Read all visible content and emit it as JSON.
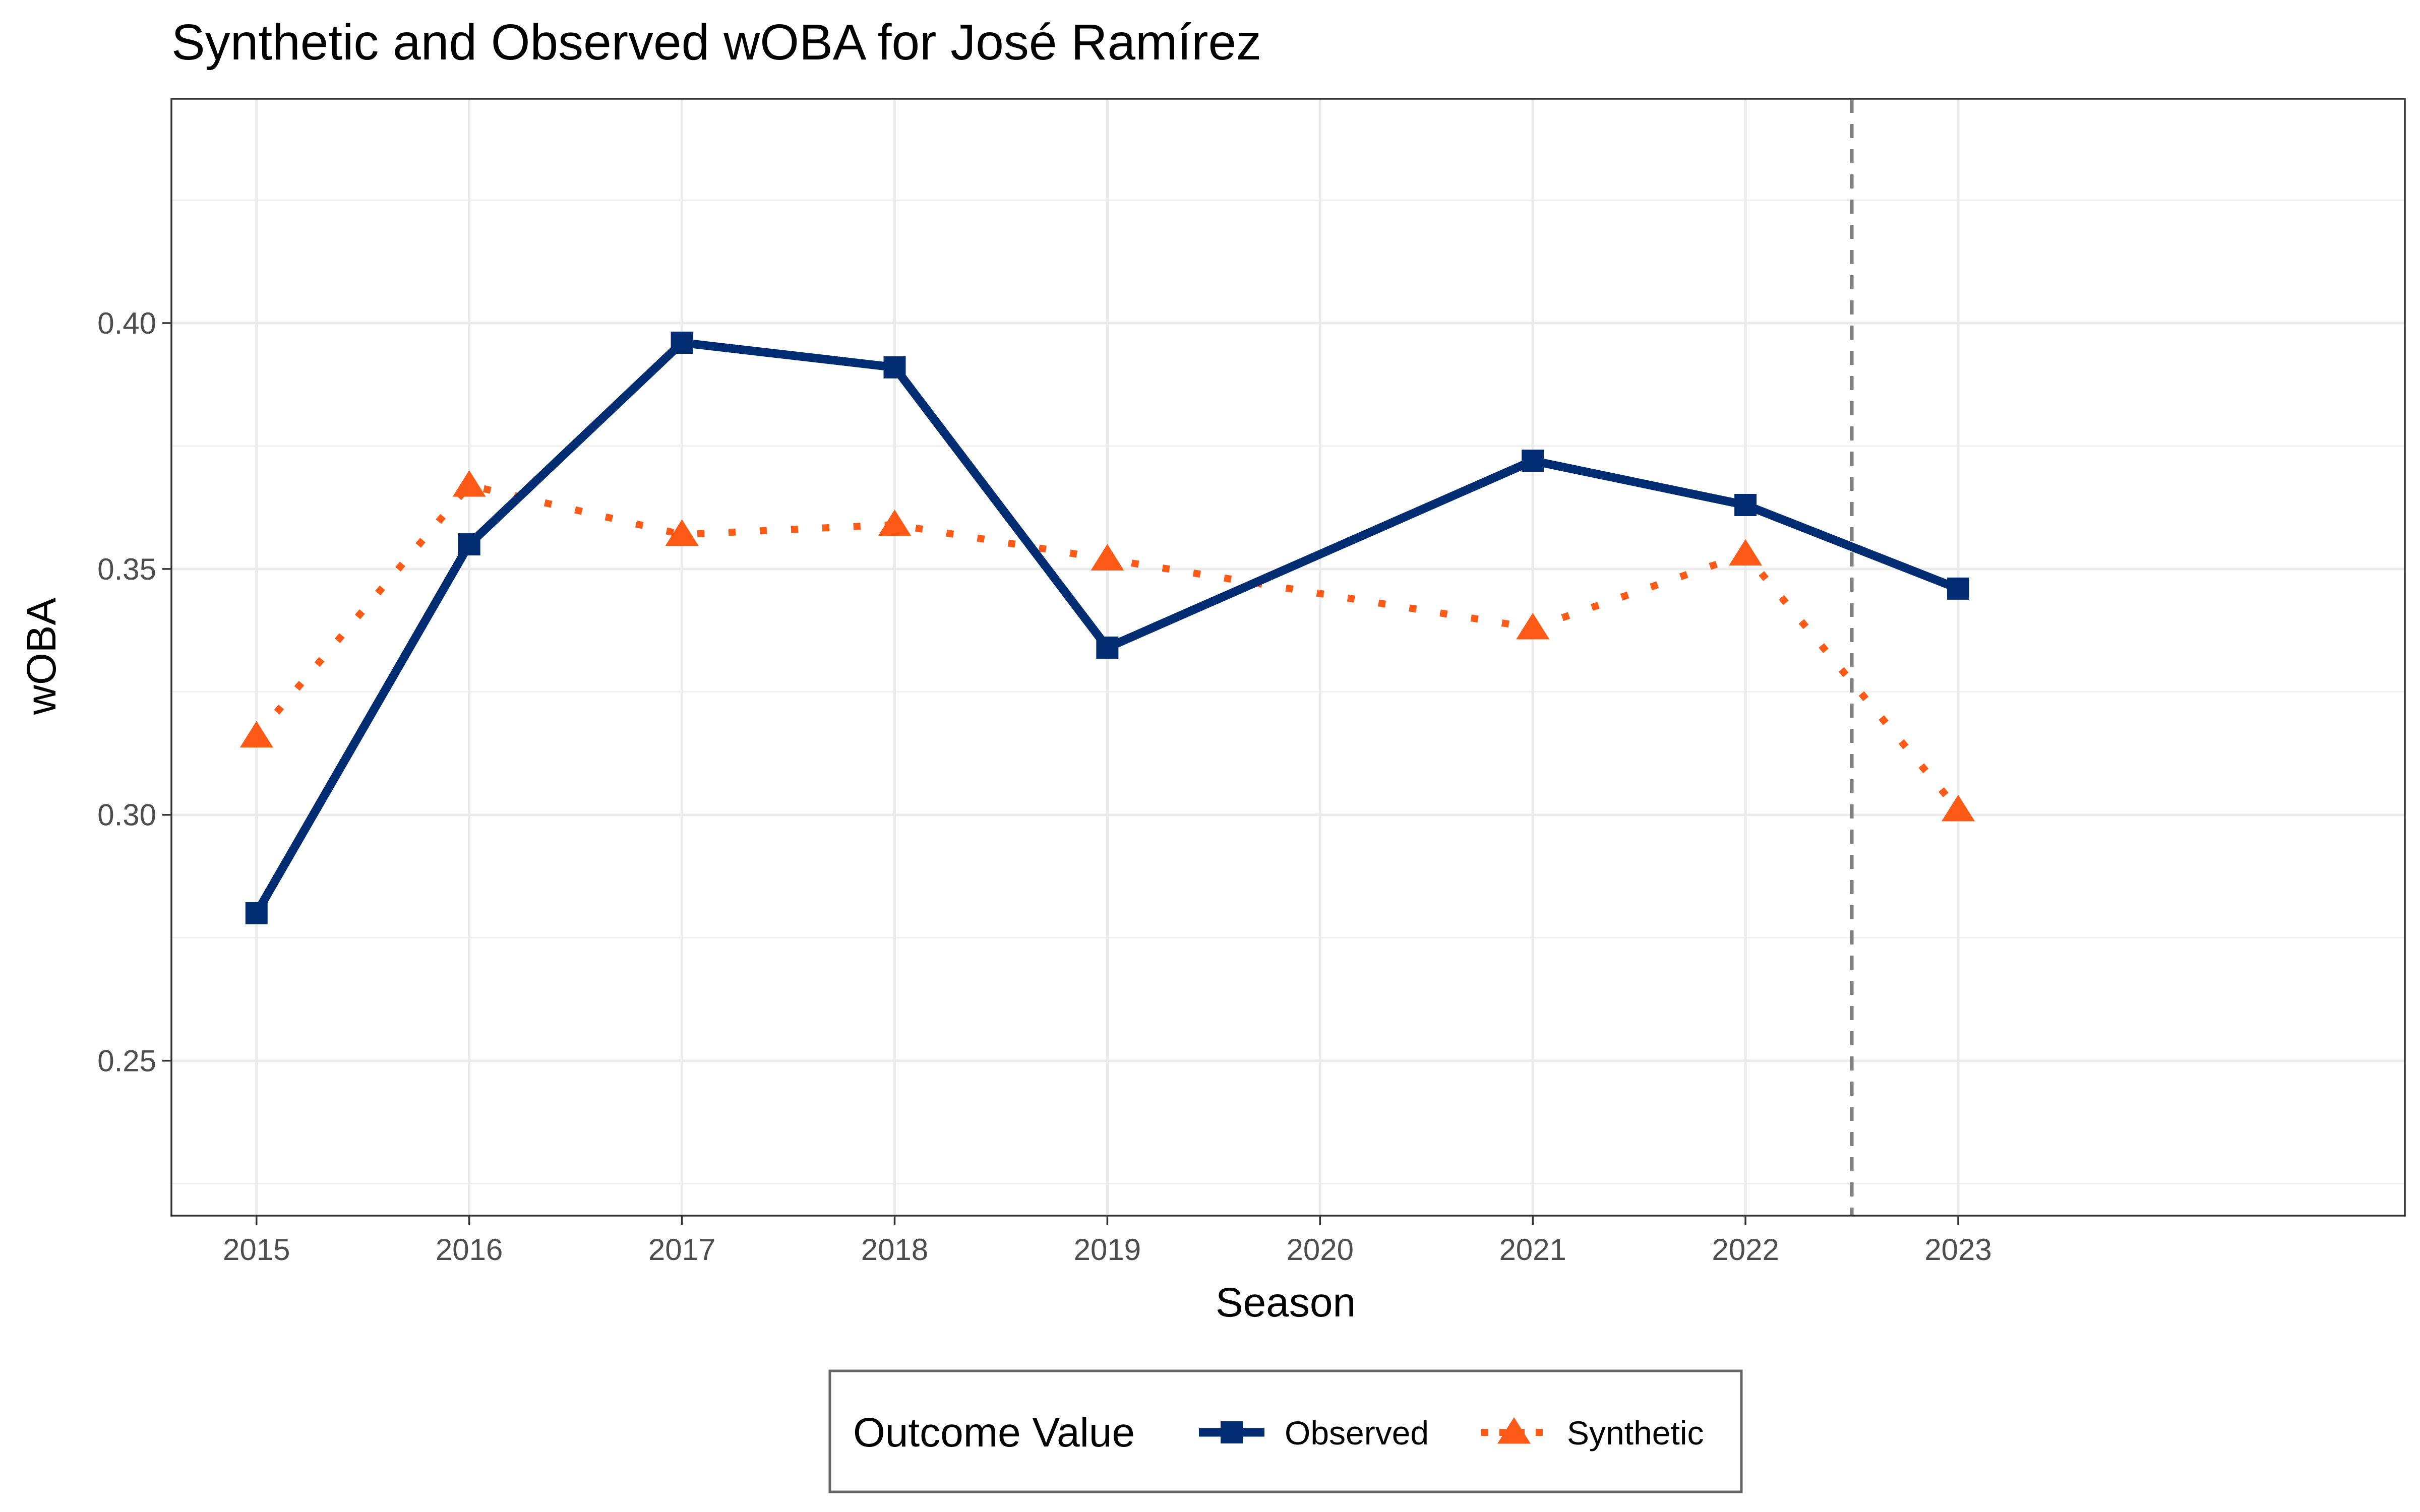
{
  "chart_data": {
    "type": "line",
    "title": "Synthetic and Observed wOBA for José Ramírez",
    "xlabel": "Season",
    "ylabel": "wOBA",
    "x": [
      2015,
      2016,
      2017,
      2018,
      2019,
      2020,
      2021,
      2022,
      2023
    ],
    "x_tick_labels": [
      "2015",
      "2016",
      "2017",
      "2018",
      "2019",
      "2020",
      "2021",
      "2022",
      "2023"
    ],
    "y_ticks": [
      0.25,
      0.3,
      0.35,
      0.4
    ],
    "y_tick_labels": [
      "0.25",
      "0.30",
      "0.35",
      "0.40"
    ],
    "xlim": [
      2014.6,
      2025.1
    ],
    "ylim": [
      0.2185,
      0.4456
    ],
    "grid": true,
    "intervention_line_x": 2022.5,
    "series": [
      {
        "name": "Observed",
        "color": "#002d72",
        "line_style": "solid",
        "marker": "square",
        "points": [
          [
            2015,
            0.28
          ],
          [
            2016,
            0.355
          ],
          [
            2017,
            0.396
          ],
          [
            2018,
            0.391
          ],
          [
            2019,
            0.334
          ],
          [
            2021,
            0.372
          ],
          [
            2022,
            0.363
          ],
          [
            2023,
            0.346
          ]
        ]
      },
      {
        "name": "Synthetic",
        "color": "#fc5a16",
        "line_style": "dotted",
        "marker": "triangle",
        "points": [
          [
            2015,
            0.316
          ],
          [
            2016,
            0.367
          ],
          [
            2017,
            0.357
          ],
          [
            2018,
            0.359
          ],
          [
            2019,
            0.352
          ],
          [
            2021,
            0.338
          ],
          [
            2022,
            0.353
          ],
          [
            2023,
            0.301
          ]
        ]
      }
    ],
    "legend": {
      "title": "Outcome Value",
      "position": "bottom",
      "items": [
        "Observed",
        "Synthetic"
      ]
    }
  }
}
